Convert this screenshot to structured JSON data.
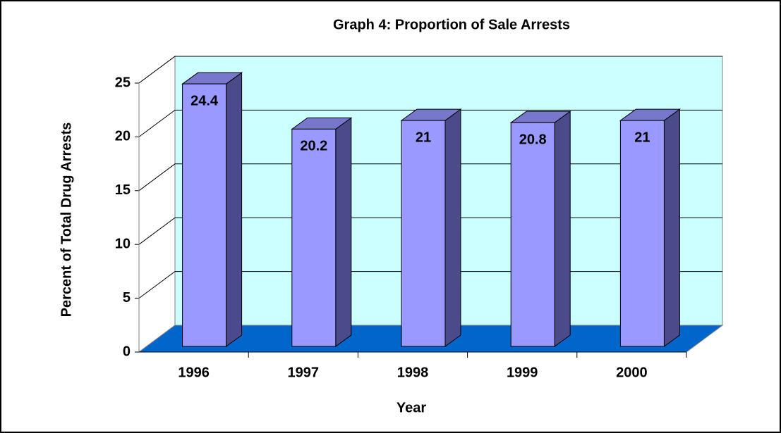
{
  "chart_data": {
    "type": "bar3d",
    "title": "Graph 4: Proportion of Sale Arrests",
    "x_label": "Year",
    "y_label": "Percent of Total Drug Arrests",
    "categories": [
      "1996",
      "1997",
      "1998",
      "1999",
      "2000"
    ],
    "values": [
      24.4,
      20.2,
      21,
      20.8,
      21
    ],
    "color": "#9999ff",
    "wall_color": "#ccffff",
    "floor_color": "#0066cc",
    "ylim": [
      0,
      25
    ],
    "yticks": [
      0,
      5,
      10,
      15,
      20,
      25
    ],
    "grid": true
  }
}
